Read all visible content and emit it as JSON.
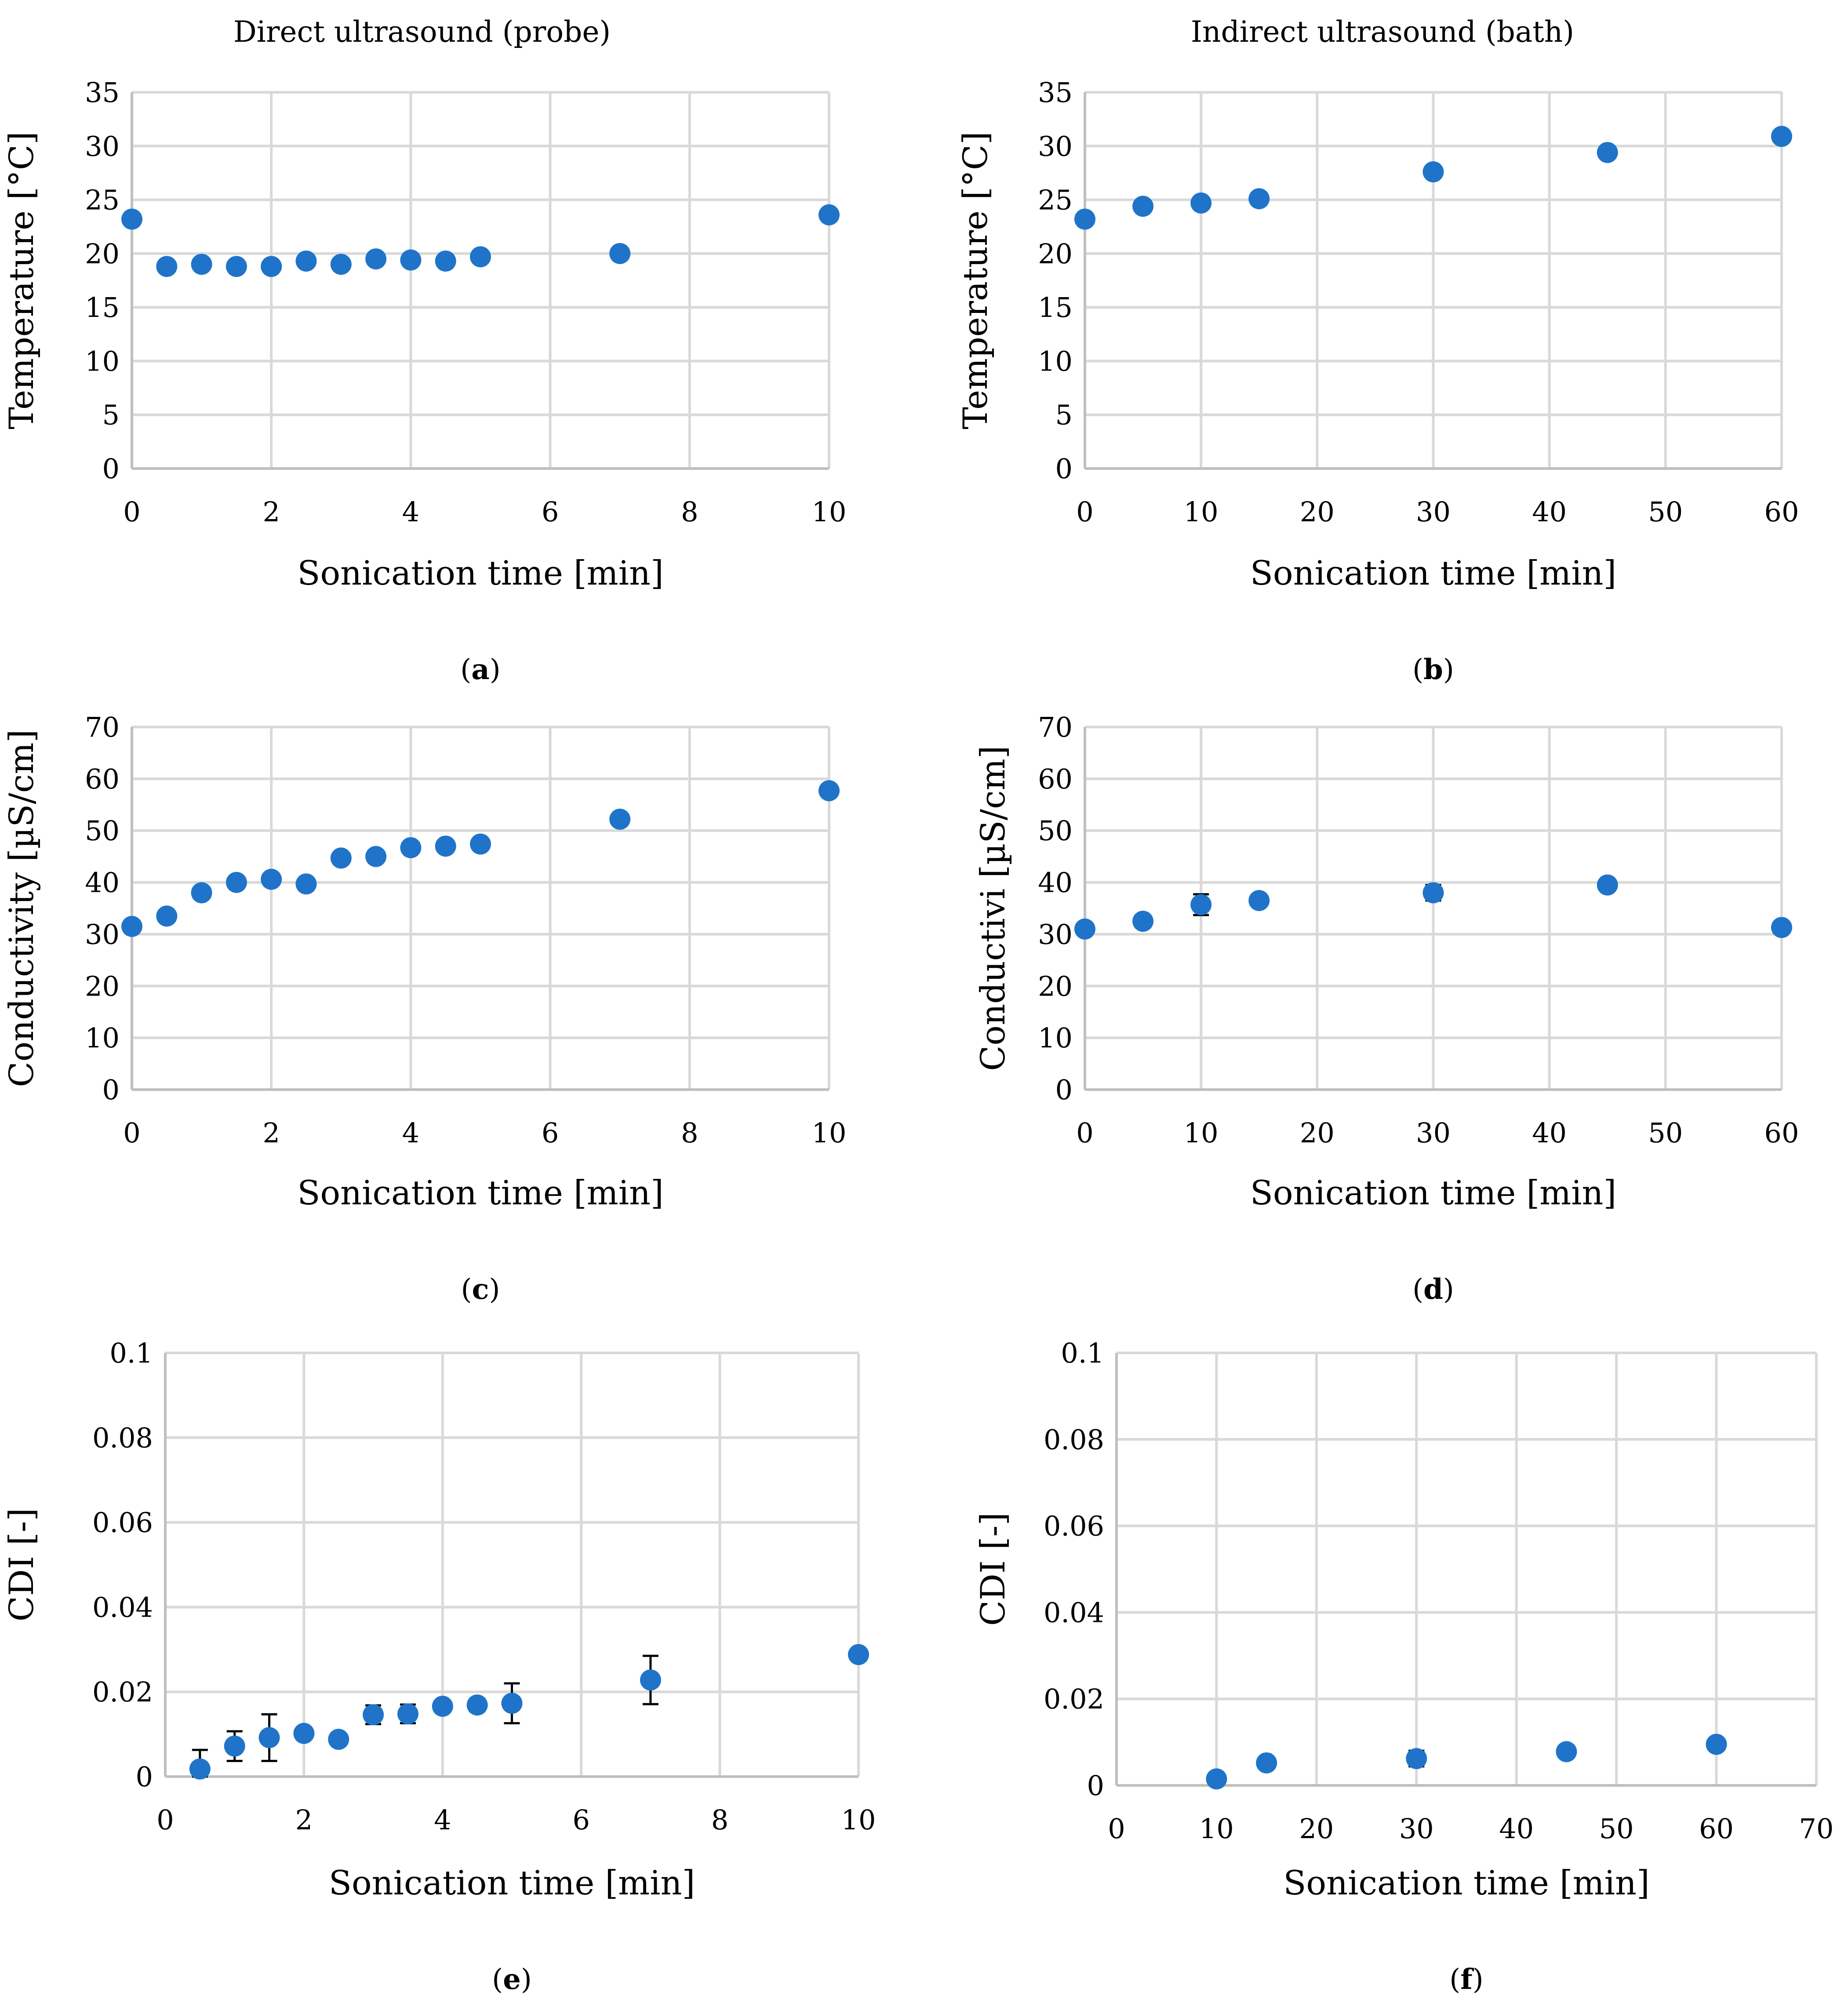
{
  "column_titles": {
    "left": "Direct ultrasound (probe)",
    "right": "Indirect ultrasound (bath)"
  },
  "colors": {
    "marker": "#1f74c9",
    "grid": "#d9d9d9",
    "axis": "#bfbfbf",
    "errorbar": "#000000"
  },
  "chart_data": [
    {
      "id": "a",
      "panel_letter": "a",
      "type": "scatter",
      "xlabel": "Sonication time [min]",
      "ylabel": "Temperature [°C]",
      "xlim": [
        0,
        10
      ],
      "xticks": [
        0,
        2,
        4,
        6,
        8,
        10
      ],
      "xtick_labels": [
        "0",
        "2",
        "4",
        "6",
        "8",
        "10"
      ],
      "ylim": [
        0,
        35
      ],
      "yticks": [
        0,
        5,
        10,
        15,
        20,
        25,
        30,
        35
      ],
      "ytick_labels": [
        "0",
        "5",
        "10",
        "15",
        "20",
        "25",
        "30",
        "35"
      ],
      "grid": true,
      "x": [
        0,
        0.5,
        1,
        1.5,
        2,
        2.5,
        3,
        3.5,
        4,
        4.5,
        5,
        7,
        10
      ],
      "y": [
        23.2,
        18.8,
        19.0,
        18.8,
        18.8,
        19.3,
        19.0,
        19.5,
        19.4,
        19.3,
        19.7,
        20.0,
        23.6
      ],
      "err": []
    },
    {
      "id": "b",
      "panel_letter": "b",
      "type": "scatter",
      "xlabel": "Sonication time [min]",
      "ylabel": "Temperature [°C]",
      "xlim": [
        0,
        60
      ],
      "xticks": [
        0,
        10,
        20,
        30,
        40,
        50,
        60
      ],
      "xtick_labels": [
        "0",
        "10",
        "20",
        "30",
        "40",
        "50",
        "60"
      ],
      "ylim": [
        0,
        35
      ],
      "yticks": [
        0,
        5,
        10,
        15,
        20,
        25,
        30,
        35
      ],
      "ytick_labels": [
        "0",
        "5",
        "10",
        "15",
        "20",
        "25",
        "30",
        "35"
      ],
      "grid": true,
      "x": [
        0,
        5,
        10,
        15,
        30,
        45,
        60
      ],
      "y": [
        23.2,
        24.4,
        24.7,
        25.1,
        27.6,
        29.4,
        30.9
      ],
      "err": []
    },
    {
      "id": "c",
      "panel_letter": "c",
      "type": "scatter",
      "xlabel": "Sonication time [min]",
      "ylabel": "Conductivity [µS/cm]",
      "xlim": [
        0,
        10
      ],
      "xticks": [
        0,
        2,
        4,
        6,
        8,
        10
      ],
      "xtick_labels": [
        "0",
        "2",
        "4",
        "6",
        "8",
        "10"
      ],
      "ylim": [
        0,
        70
      ],
      "yticks": [
        0,
        10,
        20,
        30,
        40,
        50,
        60,
        70
      ],
      "ytick_labels": [
        "0",
        "10",
        "20",
        "30",
        "40",
        "50",
        "60",
        "70"
      ],
      "grid": true,
      "x": [
        0,
        0.5,
        1,
        1.5,
        2,
        2.5,
        3,
        3.5,
        4,
        4.5,
        5,
        7,
        10
      ],
      "y": [
        31.5,
        33.5,
        38.0,
        40.0,
        40.6,
        39.7,
        44.7,
        45.0,
        46.7,
        47.0,
        47.4,
        52.2,
        57.7
      ],
      "err": []
    },
    {
      "id": "d",
      "panel_letter": "d",
      "type": "scatter",
      "xlabel": "Sonication time [min]",
      "ylabel": "Conductivi [µS/cm]",
      "xlim": [
        0,
        60
      ],
      "xticks": [
        0,
        10,
        20,
        30,
        40,
        50,
        60
      ],
      "xtick_labels": [
        "0",
        "10",
        "20",
        "30",
        "40",
        "50",
        "60"
      ],
      "ylim": [
        0,
        70
      ],
      "yticks": [
        0,
        10,
        20,
        30,
        40,
        50,
        60,
        70
      ],
      "ytick_labels": [
        "0",
        "10",
        "20",
        "30",
        "40",
        "50",
        "60",
        "70"
      ],
      "grid": true,
      "x": [
        0,
        5,
        10,
        15,
        30,
        45,
        60
      ],
      "y": [
        31.0,
        32.5,
        35.7,
        36.5,
        38.0,
        39.5,
        31.3
      ],
      "err": [
        0.8,
        1.2,
        2.0,
        0.8,
        1.5,
        0.8,
        0.5
      ]
    },
    {
      "id": "e",
      "panel_letter": "e",
      "type": "scatter",
      "xlabel": "Sonication time [min]",
      "ylabel": "CDI [-]",
      "xlim": [
        0,
        10
      ],
      "xticks": [
        0,
        2,
        4,
        6,
        8,
        10
      ],
      "xtick_labels": [
        "0",
        "2",
        "4",
        "6",
        "8",
        "10"
      ],
      "ylim": [
        0,
        0.1
      ],
      "yticks": [
        0,
        0.02,
        0.04,
        0.06,
        0.08,
        0.1
      ],
      "ytick_labels": [
        "0",
        "0.02",
        "0.04",
        "0.06",
        "0.08",
        "0.1"
      ],
      "grid": true,
      "x": [
        0.5,
        1,
        1.5,
        2,
        2.5,
        3,
        3.5,
        4,
        4.5,
        5,
        7,
        10
      ],
      "y": [
        0.0018,
        0.0072,
        0.0092,
        0.0102,
        0.0088,
        0.0146,
        0.0148,
        0.0166,
        0.0169,
        0.0173,
        0.0228,
        0.0288
      ],
      "err": [
        0.0045,
        0.0035,
        0.0055,
        0.0008,
        0.0008,
        0.0022,
        0.0022,
        0.001,
        0.0015,
        0.0047,
        0.0057,
        0.0005
      ]
    },
    {
      "id": "f",
      "panel_letter": "f",
      "type": "scatter",
      "xlabel": "Sonication time [min]",
      "ylabel": "CDI [-]",
      "xlim": [
        0,
        70
      ],
      "xticks": [
        0,
        10,
        20,
        30,
        40,
        50,
        60,
        70
      ],
      "xtick_labels": [
        "0",
        "10",
        "20",
        "30",
        "40",
        "50",
        "60",
        "70"
      ],
      "ylim": [
        0,
        0.1
      ],
      "yticks": [
        0,
        0.02,
        0.04,
        0.06,
        0.08,
        0.1
      ],
      "ytick_labels": [
        "0",
        "0.02",
        "0.04",
        "0.06",
        "0.08",
        "0.1"
      ],
      "grid": true,
      "x": [
        10,
        15,
        30,
        45,
        60
      ],
      "y": [
        0.0015,
        0.0052,
        0.0062,
        0.0078,
        0.0095
      ],
      "err": [
        0.0008,
        0.0008,
        0.0018,
        0.0008,
        0.0008
      ]
    }
  ]
}
